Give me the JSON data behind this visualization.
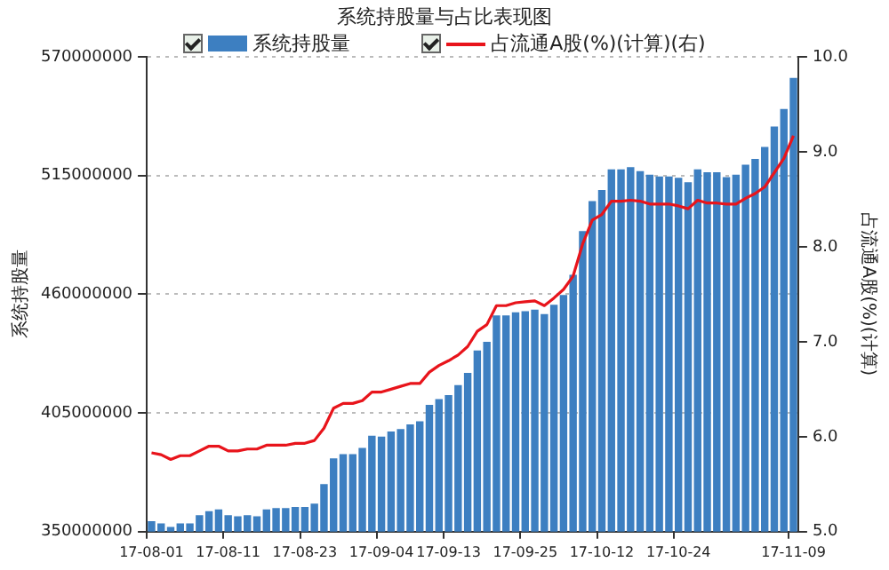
{
  "chart_data": {
    "type": "bar",
    "title": "系统持股量与占比表现图",
    "ylabel": "系统持股量",
    "y2label": "占流通A股(%)(计算)",
    "categories": [
      "17-08-01",
      null,
      null,
      null,
      null,
      null,
      null,
      null,
      "17-08-11",
      null,
      null,
      null,
      null,
      null,
      null,
      null,
      "17-08-23",
      null,
      null,
      null,
      null,
      null,
      null,
      null,
      "17-09-04",
      null,
      null,
      null,
      null,
      null,
      null,
      "17-09-13",
      null,
      null,
      null,
      null,
      null,
      null,
      null,
      "17-09-25",
      null,
      null,
      null,
      null,
      null,
      null,
      null,
      "17-10-12",
      null,
      null,
      null,
      null,
      null,
      null,
      null,
      "17-10-24",
      null,
      null,
      null,
      null,
      null,
      null,
      null,
      null,
      null,
      null,
      null,
      "17-11-09"
    ],
    "series": [
      {
        "name": "系统持股量",
        "color": "#3d7fc1",
        "values": [
          354900000,
          353800000,
          352200000,
          353800000,
          353800000,
          357600000,
          359500000,
          360300000,
          357600000,
          357100000,
          357600000,
          357100000,
          360300000,
          360900000,
          360900000,
          361400000,
          361400000,
          363000000,
          372000000,
          384000000,
          385900000,
          385900000,
          388800000,
          394500000,
          394000000,
          396400000,
          397500000,
          399700000,
          401100000,
          408700000,
          411400000,
          413300000,
          417900000,
          423600000,
          433900000,
          438000000,
          450200000,
          450200000,
          451600000,
          452100000,
          452900000,
          450800000,
          455100000,
          459700000,
          469000000,
          489300000,
          503200000,
          508300000,
          517900000,
          517900000,
          518900000,
          517000000,
          515400000,
          514600000,
          514600000,
          514000000,
          511900000,
          517900000,
          516500000,
          516500000,
          514300000,
          515400000,
          520000000,
          522700000,
          528200000,
          537700000,
          545800000,
          560200000
        ]
      },
      {
        "name": "占流通A股(%)(计算)(右)",
        "type": "line",
        "axis": "y2",
        "color": "#e8141b",
        "values": [
          5.83,
          5.81,
          5.76,
          5.8,
          5.8,
          5.85,
          5.9,
          5.9,
          5.85,
          5.85,
          5.87,
          5.87,
          5.91,
          5.91,
          5.91,
          5.93,
          5.93,
          5.96,
          6.09,
          6.3,
          6.35,
          6.35,
          6.38,
          6.47,
          6.47,
          6.5,
          6.53,
          6.56,
          6.56,
          6.68,
          6.75,
          6.8,
          6.86,
          6.95,
          7.11,
          7.18,
          7.38,
          7.38,
          7.41,
          7.42,
          7.43,
          7.38,
          7.46,
          7.55,
          7.69,
          8.03,
          8.28,
          8.34,
          8.48,
          8.48,
          8.49,
          8.48,
          8.45,
          8.45,
          8.45,
          8.43,
          8.4,
          8.49,
          8.46,
          8.46,
          8.45,
          8.45,
          8.51,
          8.56,
          8.63,
          8.78,
          8.93,
          9.17
        ]
      }
    ],
    "ylim": [
      350000000,
      570000000
    ],
    "yticks": [
      350000000,
      405000000,
      460000000,
      515000000,
      570000000
    ],
    "y2lim": [
      5,
      10
    ],
    "y2ticks": [
      {
        "value": 5,
        "label": "5.0"
      },
      {
        "value": 6,
        "label": "6.0"
      },
      {
        "value": 7,
        "label": "7.0"
      },
      {
        "value": 8,
        "label": "8.0"
      },
      {
        "value": 9,
        "label": "9.0"
      },
      {
        "value": 10,
        "label": "10.0"
      }
    ],
    "grid": "y",
    "legend": "top",
    "marker": "none",
    "line_style": "solid"
  }
}
